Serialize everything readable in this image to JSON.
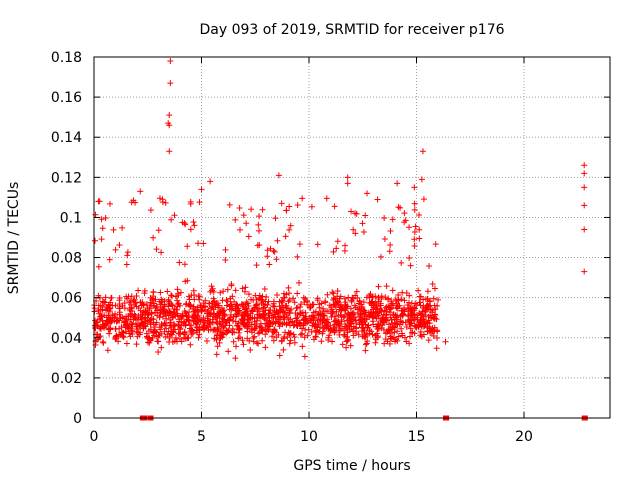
{
  "chart_data": {
    "type": "scatter",
    "title": "Day 093 of 2019, SRMTID for receiver p176",
    "xlabel": "GPS time / hours",
    "ylabel": "SRMTID / TECUs",
    "xlim": [
      0,
      24
    ],
    "ylim": [
      0,
      0.18
    ],
    "xticks": [
      0,
      5,
      10,
      15,
      20
    ],
    "xtick_labels": [
      "0",
      "5",
      "10",
      "15",
      "20"
    ],
    "yticks": [
      0,
      0.02,
      0.04,
      0.06,
      0.08,
      0.1,
      0.12,
      0.14,
      0.16,
      0.18
    ],
    "ytick_labels": [
      "0",
      "0.02",
      "0.04",
      "0.06",
      "0.08",
      "0.1",
      "0.12",
      "0.14",
      "0.16",
      "0.18"
    ],
    "grid": true,
    "marker": "+",
    "color": "#ff0000",
    "dense_region": {
      "x_range": [
        0,
        16
      ],
      "typical_y_range": [
        0.02,
        0.08
      ],
      "mean_y": 0.05,
      "point_count": 1800
    },
    "notable_points": [
      {
        "x": 3.55,
        "y": 0.178
      },
      {
        "x": 3.55,
        "y": 0.167
      },
      {
        "x": 3.5,
        "y": 0.151
      },
      {
        "x": 3.45,
        "y": 0.147
      },
      {
        "x": 3.5,
        "y": 0.146
      },
      {
        "x": 3.5,
        "y": 0.133
      },
      {
        "x": 8.6,
        "y": 0.121
      },
      {
        "x": 11.8,
        "y": 0.12
      },
      {
        "x": 11.8,
        "y": 0.117
      },
      {
        "x": 15.3,
        "y": 0.133
      },
      {
        "x": 15.25,
        "y": 0.119
      },
      {
        "x": 14.9,
        "y": 0.115
      },
      {
        "x": 5.4,
        "y": 0.118
      },
      {
        "x": 5.0,
        "y": 0.114
      },
      {
        "x": 2.15,
        "y": 0.113
      },
      {
        "x": 12.7,
        "y": 0.112
      },
      {
        "x": 14.1,
        "y": 0.117
      },
      {
        "x": 16.35,
        "y": 0.038
      }
    ],
    "isolated_points": [
      {
        "x": 22.8,
        "y": 0.126
      },
      {
        "x": 22.8,
        "y": 0.122
      },
      {
        "x": 22.8,
        "y": 0.115
      },
      {
        "x": 22.8,
        "y": 0.106
      },
      {
        "x": 22.8,
        "y": 0.094
      },
      {
        "x": 22.8,
        "y": 0.073
      }
    ],
    "zero_points": [
      {
        "x": 2.25,
        "y": 0
      },
      {
        "x": 2.35,
        "y": 0
      },
      {
        "x": 2.6,
        "y": 0
      },
      {
        "x": 2.65,
        "y": 0
      },
      {
        "x": 16.35,
        "y": 0
      },
      {
        "x": 16.4,
        "y": 0
      },
      {
        "x": 22.8,
        "y": 0
      },
      {
        "x": 22.85,
        "y": 0
      }
    ]
  }
}
